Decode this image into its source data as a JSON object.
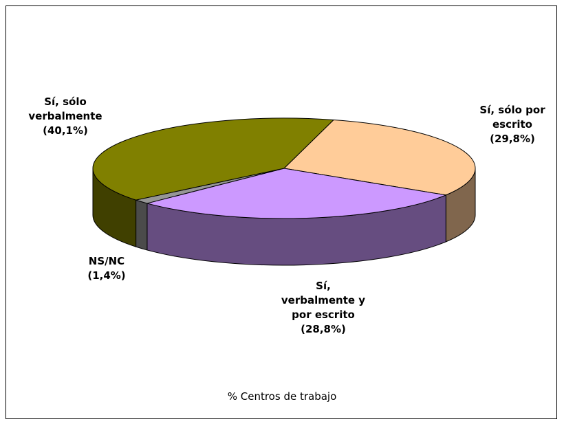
{
  "chart_data": {
    "type": "pie",
    "categories": [
      "Sí, sólo por escrito",
      "Sí, verbalmente y por escrito",
      "NS/NC",
      "Sí, sólo verbalmente"
    ],
    "values": [
      29.8,
      28.8,
      1.4,
      40.1
    ],
    "value_labels": [
      "(29,8%)",
      "(28,8%)",
      "(1,4%)",
      "(40,1%)"
    ],
    "colors": [
      "#ffcc99",
      "#cc99ff",
      "#969696",
      "#808000"
    ],
    "xlabel": "% Centros de trabajo"
  }
}
